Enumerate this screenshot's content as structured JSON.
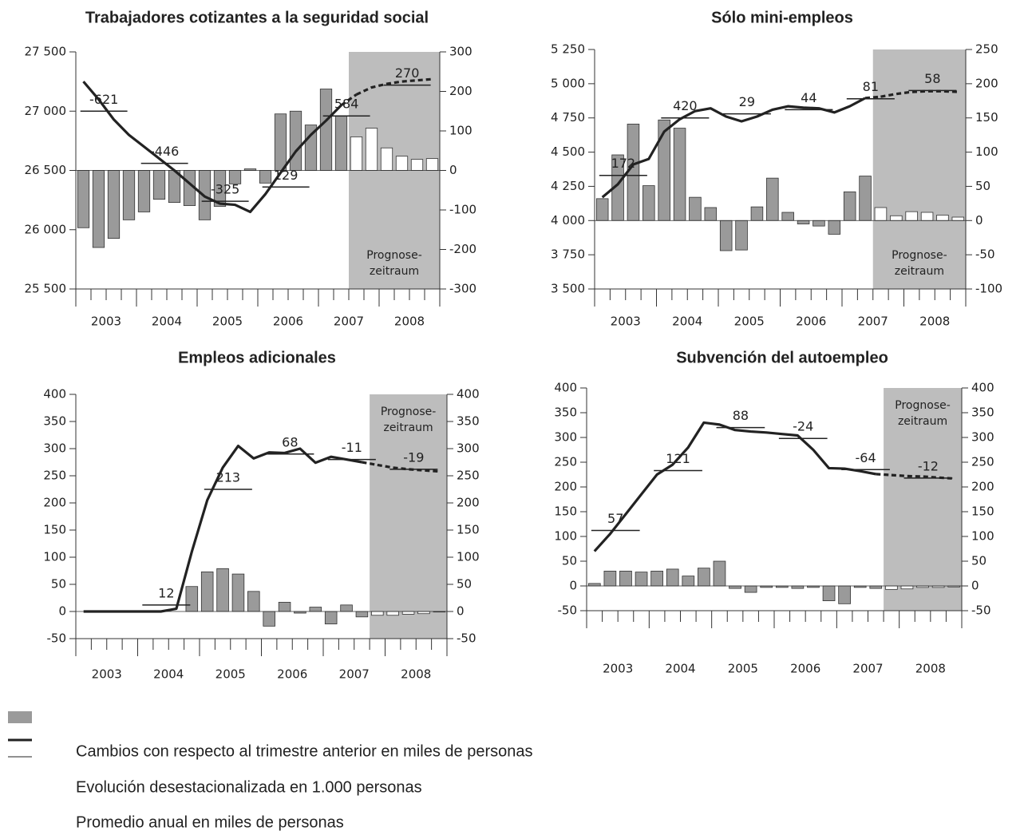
{
  "legend": {
    "texts": [
      "Cambios con respecto al trimestre anterior en miles de personas",
      "Evolución desestacionalizada en 1.000 personas",
      "Promedio anual en miles de personas"
    ],
    "bar_color": "#9a9a9a",
    "line_color": "#222222"
  },
  "chart_data": [
    {
      "type": "bar-line",
      "title": "Trabajadores cotizantes a la seguridad social",
      "years": [
        2003,
        2004,
        2005,
        2006,
        2007,
        2008
      ],
      "ylim": [
        25500,
        27500
      ],
      "yticks": [
        {
          "value": 25500,
          "label": "25 500"
        },
        {
          "value": 26000,
          "label": "26 000"
        },
        {
          "value": 26500,
          "label": "26 500"
        },
        {
          "value": 27000,
          "label": "27 000"
        },
        {
          "value": 27500,
          "label": "27 500"
        }
      ],
      "y2lim": [
        -300,
        300
      ],
      "y2ticks": [
        -300,
        -200,
        -100,
        0,
        100,
        200,
        300
      ],
      "bars": {
        "axis": "y2",
        "values": [
          -145,
          -195,
          -172,
          -125,
          -105,
          -73,
          -81,
          -89,
          -125,
          -91,
          -34,
          4,
          -32,
          143,
          150,
          115,
          206,
          137,
          85,
          107,
          57,
          36,
          28,
          30
        ]
      },
      "line": {
        "values": [
          27250,
          27100,
          26930,
          26800,
          26700,
          26600,
          26500,
          26390,
          26280,
          26220,
          26210,
          26150,
          26300,
          26480,
          26660,
          26800,
          26920,
          27050,
          27140,
          27200,
          27230,
          27250,
          27260,
          27270
        ]
      },
      "annual": {
        "levels": [
          27000,
          26560,
          26240,
          26360,
          26960,
          27220
        ],
        "changes": [
          -621,
          -446,
          -325,
          129,
          584,
          270
        ]
      },
      "forecast_start": 18,
      "forecast_label": [
        "Prognose-",
        "zeitraum"
      ],
      "forecast_label_position": "bottom",
      "forecast_color": "#bdbdbd"
    },
    {
      "type": "bar-line",
      "title": "Sólo mini-empleos",
      "years": [
        2003,
        2004,
        2005,
        2006,
        2007,
        2008
      ],
      "ylim": [
        3500,
        5250
      ],
      "yticks": [
        {
          "value": 3500,
          "label": "3 500"
        },
        {
          "value": 3750,
          "label": "3 750"
        },
        {
          "value": 4000,
          "label": "4 000"
        },
        {
          "value": 4250,
          "label": "4 250"
        },
        {
          "value": 4500,
          "label": "4 500"
        },
        {
          "value": 4750,
          "label": "4 750"
        },
        {
          "value": 5000,
          "label": "5 000"
        },
        {
          "value": 5250,
          "label": "5 250"
        }
      ],
      "y2lim": [
        -100,
        250
      ],
      "y2ticks": [
        -100,
        -50,
        0,
        50,
        100,
        150,
        200,
        250
      ],
      "bars": {
        "axis": "y2",
        "values": [
          32,
          96,
          141,
          51,
          147,
          135,
          34,
          19,
          -44,
          -43,
          20,
          62,
          12,
          -5,
          -8,
          -20,
          42,
          65,
          19,
          7,
          13,
          12,
          8,
          5
        ]
      },
      "line": {
        "values": [
          4170,
          4265,
          4410,
          4450,
          4650,
          4740,
          4800,
          4820,
          4760,
          4725,
          4760,
          4810,
          4835,
          4825,
          4820,
          4790,
          4835,
          4895,
          4905,
          4925,
          4940,
          4945,
          4945,
          4940
        ]
      },
      "annual": {
        "levels": [
          4330,
          4750,
          4780,
          4810,
          4890,
          4950
        ],
        "changes": [
          172,
          420,
          29,
          44,
          81,
          58
        ]
      },
      "forecast_start": 18,
      "forecast_label": [
        "Prognose-",
        "zeitraum"
      ],
      "forecast_label_position": "bottom",
      "forecast_color": "#bdbdbd"
    },
    {
      "type": "bar-line",
      "title": "Empleos adicionales",
      "years": [
        2003,
        2004,
        2005,
        2006,
        2007,
        2008
      ],
      "ylim": [
        -50,
        400
      ],
      "yticks": [
        -50,
        0,
        50,
        100,
        150,
        200,
        250,
        300,
        350,
        400
      ],
      "y2lim": [
        -50,
        400
      ],
      "y2ticks": [
        -50,
        0,
        50,
        100,
        150,
        200,
        250,
        300,
        350,
        400
      ],
      "bars": {
        "axis": "y2",
        "values": [
          0,
          0,
          0,
          0,
          0,
          0,
          0,
          46,
          73,
          79,
          69,
          37,
          -27,
          17,
          -3,
          8,
          -23,
          12,
          -10,
          -7,
          -7,
          -5,
          -4,
          -1
        ]
      },
      "line": {
        "values": [
          0,
          0,
          0,
          0,
          0,
          0,
          5,
          110,
          205,
          265,
          305,
          282,
          293,
          292,
          300,
          274,
          285,
          280,
          275,
          270,
          265,
          262,
          260,
          258
        ]
      },
      "annual": {
        "levels": [
          null,
          12,
          225,
          290,
          280,
          262
        ],
        "changes": [
          null,
          12,
          213,
          68,
          -11,
          -19
        ]
      },
      "forecast_start": 19,
      "forecast_label": [
        "Prognose-",
        "zeitraum"
      ],
      "forecast_label_position": "top",
      "forecast_color": "#bdbdbd"
    },
    {
      "type": "bar-line",
      "title": "Subvención del autoempleo",
      "years": [
        2003,
        2004,
        2005,
        2006,
        2007,
        2008
      ],
      "ylim": [
        -50,
        400
      ],
      "yticks": [
        -50,
        0,
        50,
        100,
        150,
        200,
        250,
        300,
        350,
        400
      ],
      "y2lim": [
        -50,
        400
      ],
      "y2ticks": [
        -50,
        0,
        50,
        100,
        150,
        200,
        250,
        300,
        350,
        400
      ],
      "bars": {
        "axis": "y2",
        "values": [
          5,
          30,
          30,
          28,
          30,
          34,
          20,
          36,
          50,
          -5,
          -13,
          -3,
          -3,
          -5,
          -3,
          -30,
          -36,
          -3,
          -5,
          -7,
          -6,
          -3,
          -3,
          -2
        ]
      },
      "line": {
        "values": [
          70,
          105,
          145,
          185,
          225,
          245,
          280,
          330,
          326,
          315,
          312,
          310,
          307,
          304,
          275,
          238,
          237,
          232,
          226,
          224,
          222,
          221,
          219,
          217
        ]
      },
      "annual": {
        "levels": [
          112,
          233,
          320,
          298,
          235,
          218
        ],
        "changes": [
          57,
          121,
          88,
          -24,
          -64,
          -12
        ]
      },
      "forecast_start": 19,
      "forecast_label": [
        "Prognose-",
        "zeitraum"
      ],
      "forecast_label_position": "top",
      "forecast_color": "#bdbdbd"
    }
  ]
}
